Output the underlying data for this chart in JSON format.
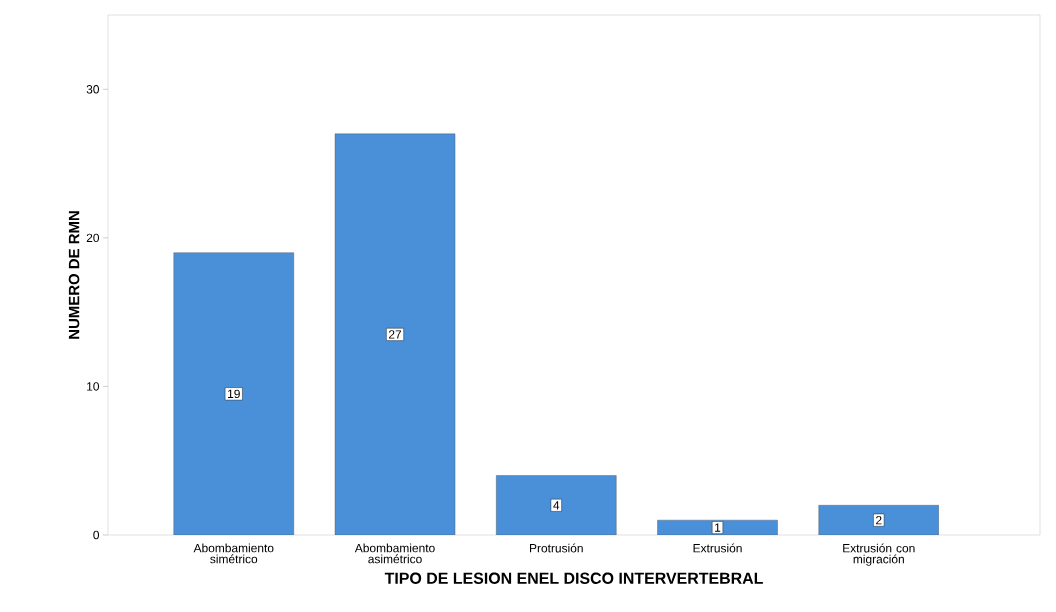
{
  "chart_data": {
    "type": "bar",
    "xlabel": "TIPO DE LESION ENEL DISCO INTERVERTEBRAL",
    "ylabel": "NUMERO DE RMN",
    "categories": [
      "Abombamiento simétrico",
      "Abombamiento asimétrico",
      "Protrusión",
      "Extrusión",
      "Extrusión con migración"
    ],
    "values": [
      19,
      27,
      4,
      1,
      2
    ],
    "color": "#4a90d9",
    "ylim": [
      0,
      35
    ],
    "yticks": [
      0,
      10,
      20,
      30
    ],
    "data_labels": true,
    "grid": false
  }
}
